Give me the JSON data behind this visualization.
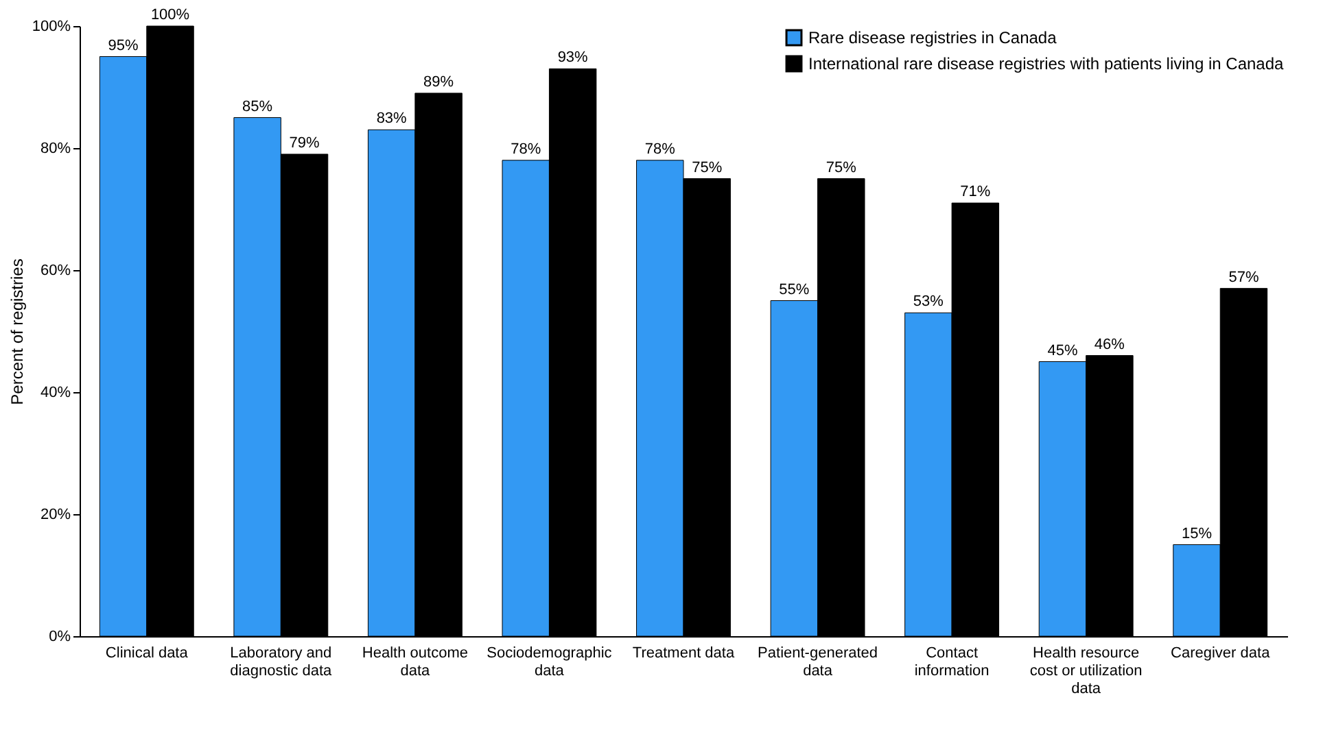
{
  "chart_data": {
    "type": "bar",
    "ylabel": "Percent of registries",
    "categories": [
      "Clinical data",
      "Laboratory and\ndiagnostic data",
      "Health outcome\ndata",
      "Sociodemographic\ndata",
      "Treatment data",
      "Patient-generated\ndata",
      "Contact\ninformation",
      "Health resource\ncost or utilization\ndata",
      "Caregiver data"
    ],
    "series": [
      {
        "name": "Rare disease registries in Canada",
        "color": "#3399f3",
        "values": [
          95,
          85,
          83,
          78,
          78,
          55,
          53,
          45,
          15
        ],
        "value_labels": [
          "95%",
          "85%",
          "83%",
          "78%",
          "78%",
          "55%",
          "53%",
          "45%",
          "15%"
        ]
      },
      {
        "name": "International rare disease registries with patients living in Canada",
        "color": "#000000",
        "values": [
          100,
          79,
          89,
          93,
          75,
          75,
          71,
          46,
          57
        ],
        "value_labels": [
          "100%",
          "79%",
          "89%",
          "93%",
          "75%",
          "75%",
          "71%",
          "46%",
          "57%"
        ]
      }
    ],
    "ylim": [
      0,
      100
    ],
    "yticks": [
      {
        "value": 0,
        "label": "0%"
      },
      {
        "value": 20,
        "label": "20%"
      },
      {
        "value": 40,
        "label": "40%"
      },
      {
        "value": 60,
        "label": "60%"
      },
      {
        "value": 80,
        "label": "80%"
      },
      {
        "value": 100,
        "label": "100%"
      }
    ],
    "grid": false,
    "legend": "top right"
  }
}
